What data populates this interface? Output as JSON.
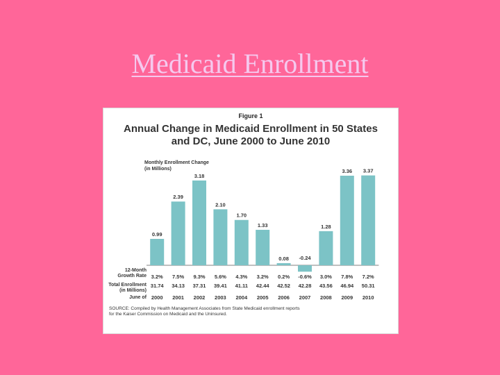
{
  "slide": {
    "title": "Medicaid Enrollment"
  },
  "figure": {
    "label": "Figure 1",
    "title_line1": "Annual Change in Medicaid Enrollment in 50 States",
    "title_line2": "and DC, June 2000 to June 2010",
    "ylabel_line1": "Monthly Enrollment Change",
    "ylabel_line2": "(in Millions)",
    "growth_label_line1": "12-Month",
    "growth_label_line2": "Growth Rate",
    "total_label_line1": "Total Enrollment",
    "total_label_line2": "(in Millions)",
    "june_label": "June of",
    "source_line1": "SOURCE: Compiled by Health Management Associates from State Medicaid enrollment reports",
    "source_line2": "for the Kaiser Commission on Medicaid and the Uninsured."
  },
  "chart_data": {
    "type": "bar",
    "title": "Annual Change in Medicaid Enrollment in 50 States and DC, June 2000 to June 2010",
    "ylabel": "Monthly Enrollment Change (in Millions)",
    "categories": [
      "2000",
      "2001",
      "2002",
      "2003",
      "2004",
      "2005",
      "2006",
      "2007",
      "2008",
      "2009",
      "2010"
    ],
    "values": [
      0.99,
      2.39,
      3.18,
      2.1,
      1.7,
      1.33,
      0.08,
      -0.24,
      1.28,
      3.36,
      3.37
    ],
    "value_labels": [
      "0.99",
      "2.39",
      "3.18",
      "2.10",
      "1.70",
      "1.33",
      "0.08",
      "-0.24",
      "1.28",
      "3.36",
      "3.37"
    ],
    "growth_rates": [
      "3.2%",
      "7.5%",
      "9.3%",
      "5.6%",
      "4.3%",
      "3.2%",
      "0.2%",
      "-0.6%",
      "3.0%",
      "7.8%",
      "7.2%"
    ],
    "total_enrollment": [
      "31.74",
      "34.13",
      "37.31",
      "39.41",
      "41.11",
      "42.44",
      "42.52",
      "42.28",
      "43.56",
      "46.94",
      "50.31"
    ],
    "ylim": [
      -0.5,
      3.5
    ],
    "bar_color": "#7cc3c6"
  }
}
